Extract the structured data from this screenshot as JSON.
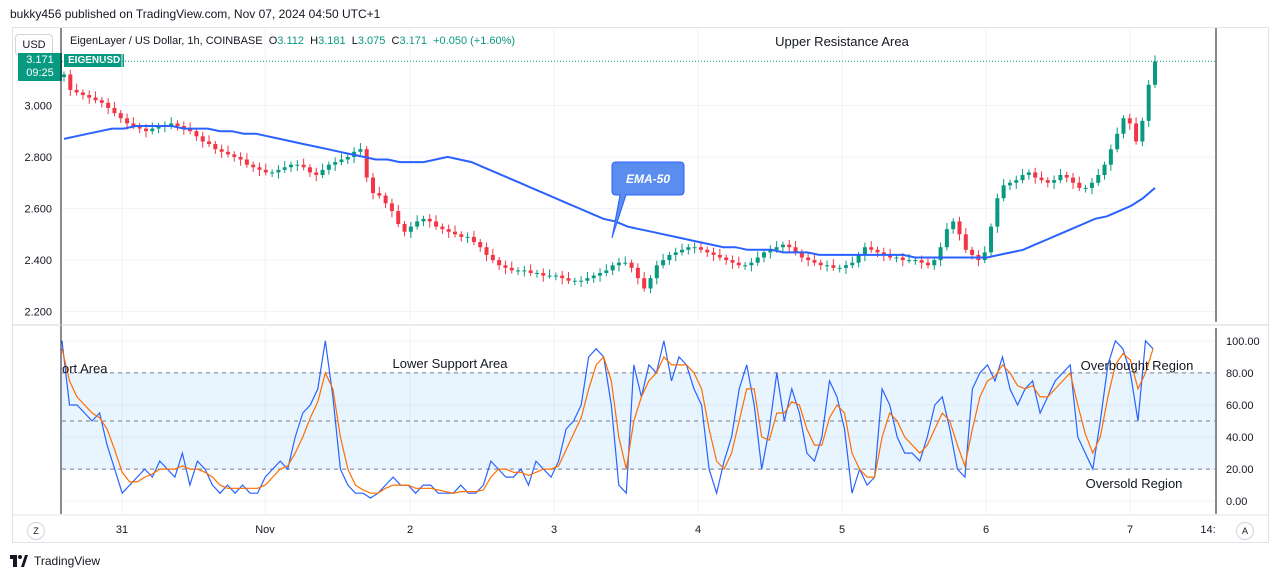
{
  "publisher": "bukky456 published on TradingView.com, Nov 07, 2024 04:50 UTC+1",
  "currency": "USD",
  "symbol": {
    "name": "EigenLayer / US Dollar, 1h, COINBASE",
    "o_label": "O",
    "o": "3.112",
    "h_label": "H",
    "h": "3.181",
    "l_label": "L",
    "l": "3.075",
    "c_label": "C",
    "c": "3.171",
    "change": "+0.050 (+1.60%)",
    "ticker": "EIGENUSD",
    "last_price": "3.171",
    "countdown": "09:25"
  },
  "annotations": {
    "upper": "Upper Resistance Area",
    "lower": "Lower Support Area",
    "support_clipped": "ort Area",
    "overbought": "Overbought Region",
    "oversold": "Oversold Region",
    "ema_callout": "EMA-50"
  },
  "footer": {
    "brand": "TradingView"
  },
  "buttons": {
    "goto_date": "Z",
    "auto_scale": "A"
  },
  "colors": {
    "up": "#089981",
    "down": "#f23645",
    "ema": "#2962ff",
    "stoch_k": "#2962ff",
    "stoch_d": "#ff6d00",
    "band": "#2196f3"
  },
  "chart_data": [
    {
      "type": "candlestick",
      "title": "",
      "ylim": [
        2.16,
        3.3
      ],
      "y_ticks": [
        "3.000",
        "2.800",
        "2.600",
        "2.400",
        "2.200"
      ],
      "x_ticks": [
        "31",
        "Nov",
        "2",
        "3",
        "4",
        "5",
        "6",
        "7",
        "14:"
      ],
      "close_path": [
        3.12,
        3.06,
        3.05,
        3.04,
        3.03,
        3.02,
        3.01,
        2.99,
        2.97,
        2.95,
        2.93,
        2.92,
        2.91,
        2.9,
        2.91,
        2.92,
        2.92,
        2.93,
        2.92,
        2.91,
        2.9,
        2.88,
        2.86,
        2.85,
        2.83,
        2.82,
        2.81,
        2.8,
        2.79,
        2.77,
        2.76,
        2.75,
        2.74,
        2.74,
        2.75,
        2.76,
        2.77,
        2.77,
        2.76,
        2.74,
        2.73,
        2.75,
        2.77,
        2.78,
        2.79,
        2.8,
        2.82,
        2.83,
        2.72,
        2.66,
        2.65,
        2.62,
        2.59,
        2.54,
        2.51,
        2.53,
        2.55,
        2.56,
        2.55,
        2.53,
        2.52,
        2.51,
        2.5,
        2.49,
        2.49,
        2.47,
        2.45,
        2.42,
        2.4,
        2.38,
        2.37,
        2.36,
        2.36,
        2.36,
        2.35,
        2.35,
        2.34,
        2.34,
        2.34,
        2.33,
        2.32,
        2.32,
        2.32,
        2.33,
        2.34,
        2.35,
        2.36,
        2.38,
        2.39,
        2.39,
        2.37,
        2.33,
        2.29,
        2.33,
        2.38,
        2.4,
        2.42,
        2.43,
        2.44,
        2.45,
        2.45,
        2.44,
        2.43,
        2.42,
        2.41,
        2.4,
        2.39,
        2.38,
        2.38,
        2.39,
        2.41,
        2.43,
        2.44,
        2.45,
        2.46,
        2.45,
        2.43,
        2.41,
        2.4,
        2.39,
        2.38,
        2.38,
        2.37,
        2.37,
        2.38,
        2.39,
        2.42,
        2.45,
        2.44,
        2.43,
        2.42,
        2.41,
        2.41,
        2.4,
        2.4,
        2.4,
        2.39,
        2.38,
        2.4,
        2.45,
        2.52,
        2.55,
        2.5,
        2.44,
        2.42,
        2.4,
        2.43,
        2.53,
        2.64,
        2.69,
        2.7,
        2.71,
        2.73,
        2.74,
        2.72,
        2.71,
        2.7,
        2.71,
        2.73,
        2.72,
        2.7,
        2.68,
        2.68,
        2.7,
        2.73,
        2.77,
        2.83,
        2.89,
        2.95,
        2.93,
        2.86,
        2.94,
        3.08,
        3.17
      ],
      "ema50_path": [
        2.87,
        2.88,
        2.89,
        2.9,
        2.91,
        2.91,
        2.92,
        2.92,
        2.92,
        2.92,
        2.91,
        2.91,
        2.91,
        2.9,
        2.9,
        2.89,
        2.89,
        2.88,
        2.87,
        2.86,
        2.85,
        2.84,
        2.83,
        2.82,
        2.81,
        2.8,
        2.79,
        2.79,
        2.78,
        2.78,
        2.78,
        2.79,
        2.8,
        2.79,
        2.78,
        2.76,
        2.74,
        2.72,
        2.7,
        2.68,
        2.66,
        2.64,
        2.62,
        2.6,
        2.58,
        2.56,
        2.55,
        2.53,
        2.52,
        2.51,
        2.5,
        2.49,
        2.48,
        2.47,
        2.46,
        2.45,
        2.45,
        2.44,
        2.44,
        2.44,
        2.43,
        2.43,
        2.43,
        2.42,
        2.42,
        2.42,
        2.42,
        2.42,
        2.42,
        2.42,
        2.42,
        2.41,
        2.41,
        2.41,
        2.41,
        2.41,
        2.41,
        2.41,
        2.42,
        2.43,
        2.44,
        2.46,
        2.48,
        2.5,
        2.52,
        2.54,
        2.56,
        2.57,
        2.59,
        2.61,
        2.64,
        2.68
      ]
    },
    {
      "type": "line",
      "title": "",
      "ylim": [
        -8,
        108
      ],
      "y_ticks": [
        "100.00",
        "80.00",
        "60.00",
        "40.00",
        "20.00",
        "0.00"
      ],
      "bands": [
        20,
        50,
        80
      ],
      "series": [
        {
          "values": [
            100,
            60,
            60,
            55,
            50,
            55,
            35,
            20,
            5,
            10,
            15,
            20,
            15,
            25,
            20,
            15,
            30,
            10,
            25,
            20,
            10,
            5,
            10,
            5,
            10,
            5,
            5,
            15,
            20,
            25,
            20,
            40,
            55,
            60,
            70,
            100,
            65,
            20,
            10,
            5,
            5,
            2,
            5,
            10,
            15,
            10,
            10,
            5,
            10,
            10,
            5,
            5,
            5,
            10,
            5,
            5,
            10,
            25,
            20,
            15,
            15,
            20,
            10,
            25,
            20,
            15,
            25,
            45,
            50,
            60,
            90,
            95,
            90,
            60,
            10,
            5,
            85,
            65,
            85,
            80,
            100,
            75,
            90,
            85,
            70,
            60,
            20,
            5,
            25,
            40,
            70,
            85,
            60,
            20,
            45,
            80,
            50,
            70,
            55,
            30,
            25,
            40,
            75,
            65,
            45,
            5,
            20,
            10,
            15,
            70,
            60,
            40,
            30,
            30,
            25,
            40,
            60,
            65,
            45,
            20,
            15,
            70,
            80,
            85,
            75,
            90,
            70,
            60,
            70,
            75,
            55,
            65,
            75,
            80,
            85,
            40,
            30,
            20,
            50,
            85,
            100,
            95,
            80,
            50,
            100,
            95
          ]
        },
        {
          "values": [
            95,
            75,
            65,
            60,
            55,
            52,
            45,
            32,
            18,
            12,
            12,
            15,
            17,
            20,
            20,
            20,
            22,
            20,
            20,
            18,
            15,
            10,
            8,
            8,
            8,
            8,
            8,
            10,
            15,
            20,
            22,
            30,
            40,
            52,
            62,
            80,
            70,
            40,
            20,
            10,
            7,
            5,
            5,
            8,
            10,
            10,
            10,
            8,
            8,
            8,
            7,
            6,
            5,
            6,
            6,
            6,
            7,
            15,
            20,
            20,
            18,
            18,
            16,
            18,
            20,
            20,
            22,
            32,
            42,
            52,
            70,
            85,
            90,
            75,
            40,
            20,
            50,
            65,
            75,
            80,
            90,
            85,
            85,
            85,
            80,
            70,
            45,
            25,
            20,
            30,
            50,
            70,
            70,
            40,
            38,
            55,
            55,
            62,
            60,
            45,
            35,
            35,
            52,
            60,
            55,
            30,
            20,
            15,
            15,
            40,
            55,
            50,
            40,
            35,
            30,
            35,
            45,
            55,
            50,
            35,
            22,
            45,
            65,
            75,
            78,
            85,
            80,
            72,
            70,
            72,
            65,
            65,
            70,
            75,
            80,
            60,
            42,
            30,
            40,
            65,
            85,
            92,
            88,
            70,
            80,
            95
          ]
        }
      ]
    }
  ]
}
